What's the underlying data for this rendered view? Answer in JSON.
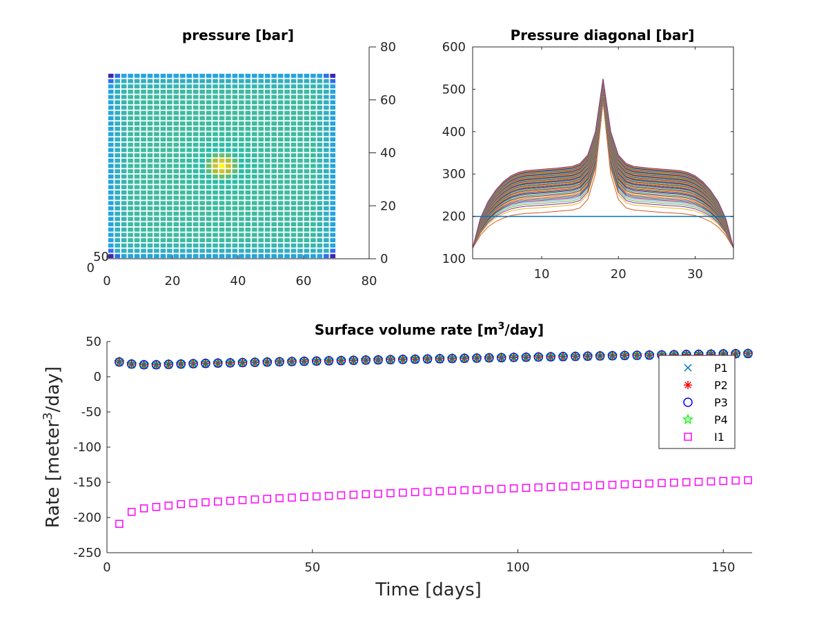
{
  "chart_data": [
    {
      "type": "heatmap",
      "title": "pressure [bar]",
      "grid": {
        "nx": 35,
        "ny": 35
      },
      "colormap": [
        "#3e26a8",
        "#2f5cf9",
        "#23a0e6",
        "#3fbc9e",
        "#27bdaa",
        "#a6be36",
        "#fbc438",
        "#f9fb15"
      ],
      "x_ticks": [
        "0",
        "20",
        "40",
        "60",
        "80"
      ],
      "x_range": [
        0,
        80
      ],
      "y_ticks_right": [
        "0",
        "20",
        "40",
        "60",
        "80"
      ],
      "y_range": [
        0,
        80
      ],
      "corner_labels": [
        "50",
        "0"
      ],
      "field": {
        "base": 0.42,
        "peak_center": [
          17,
          17
        ],
        "peak_value": 1.0,
        "corner_value": 0.0
      }
    },
    {
      "type": "line",
      "title": "Pressure diagonal [bar]",
      "x_ticks": [
        "10",
        "20",
        "30"
      ],
      "y_ticks": [
        "100",
        "200",
        "300",
        "400",
        "500",
        "600"
      ],
      "xlim": [
        1,
        35
      ],
      "ylim": [
        100,
        600
      ],
      "initial_pressure": 200,
      "n_curves": 52,
      "profile": {
        "x": [
          1,
          2,
          3,
          4,
          5,
          6,
          7,
          8,
          10,
          12,
          14,
          15,
          16,
          17,
          18,
          19,
          20,
          21,
          22,
          24,
          26,
          28,
          29,
          30,
          31,
          32,
          33,
          34,
          35
        ],
        "first_curve": [
          125,
          155,
          175,
          188,
          196,
          202,
          205,
          207,
          209,
          212,
          215,
          220,
          240,
          300,
          470,
          300,
          240,
          220,
          215,
          212,
          209,
          207,
          205,
          202,
          196,
          188,
          175,
          155,
          125
        ],
        "last_curve": [
          125,
          195,
          235,
          262,
          282,
          296,
          304,
          308,
          311,
          314,
          318,
          325,
          345,
          400,
          525,
          400,
          345,
          325,
          318,
          314,
          311,
          308,
          304,
          296,
          282,
          262,
          235,
          195,
          125
        ]
      },
      "colors": [
        "#0072bd",
        "#d95319",
        "#edb120",
        "#7e2f8e",
        "#77ac30",
        "#4dbeee",
        "#a2142f"
      ]
    },
    {
      "type": "scatter",
      "title_main": "Surface volume rate [m",
      "title_sup": "3",
      "title_tail": "/day]",
      "xlabel": "Time [days]",
      "ylabel_main": "Rate [meter",
      "ylabel_sup": "3",
      "ylabel_tail": "/day]",
      "xlim": [
        0,
        157
      ],
      "ylim": [
        -250,
        50
      ],
      "x_ticks": [
        0,
        50,
        100,
        150
      ],
      "y_ticks": [
        50,
        0,
        -50,
        -100,
        -150,
        -200,
        -250
      ],
      "x": [
        3,
        6,
        9,
        12,
        15,
        18,
        21,
        24,
        27,
        30,
        33,
        36,
        39,
        42,
        45,
        48,
        51,
        54,
        57,
        60,
        63,
        66,
        69,
        72,
        75,
        78,
        81,
        84,
        87,
        90,
        93,
        96,
        99,
        102,
        105,
        108,
        111,
        114,
        117,
        120,
        123,
        126,
        129,
        132,
        135,
        138,
        141,
        144,
        147,
        150,
        153,
        156
      ],
      "legend_position": "top-right",
      "series": [
        {
          "name": "P1",
          "marker": "x",
          "color": "#0072bd",
          "y_start": 21,
          "y_dip": 17,
          "y_end": 33
        },
        {
          "name": "P2",
          "marker": "asterisk",
          "color": "#ff0000",
          "y_start": 21,
          "y_dip": 17,
          "y_end": 33
        },
        {
          "name": "P3",
          "marker": "circle",
          "color": "#0000ff",
          "y_start": 21,
          "y_dip": 17,
          "y_end": 33
        },
        {
          "name": "P4",
          "marker": "star",
          "color": "#00ff00",
          "y_start": 21,
          "y_dip": 17,
          "y_end": 33
        },
        {
          "name": "I1",
          "marker": "square",
          "color": "#ff00ff",
          "values_head": [
            -209,
            -192,
            -187,
            -185,
            -183
          ],
          "y_end": -147
        }
      ]
    }
  ]
}
